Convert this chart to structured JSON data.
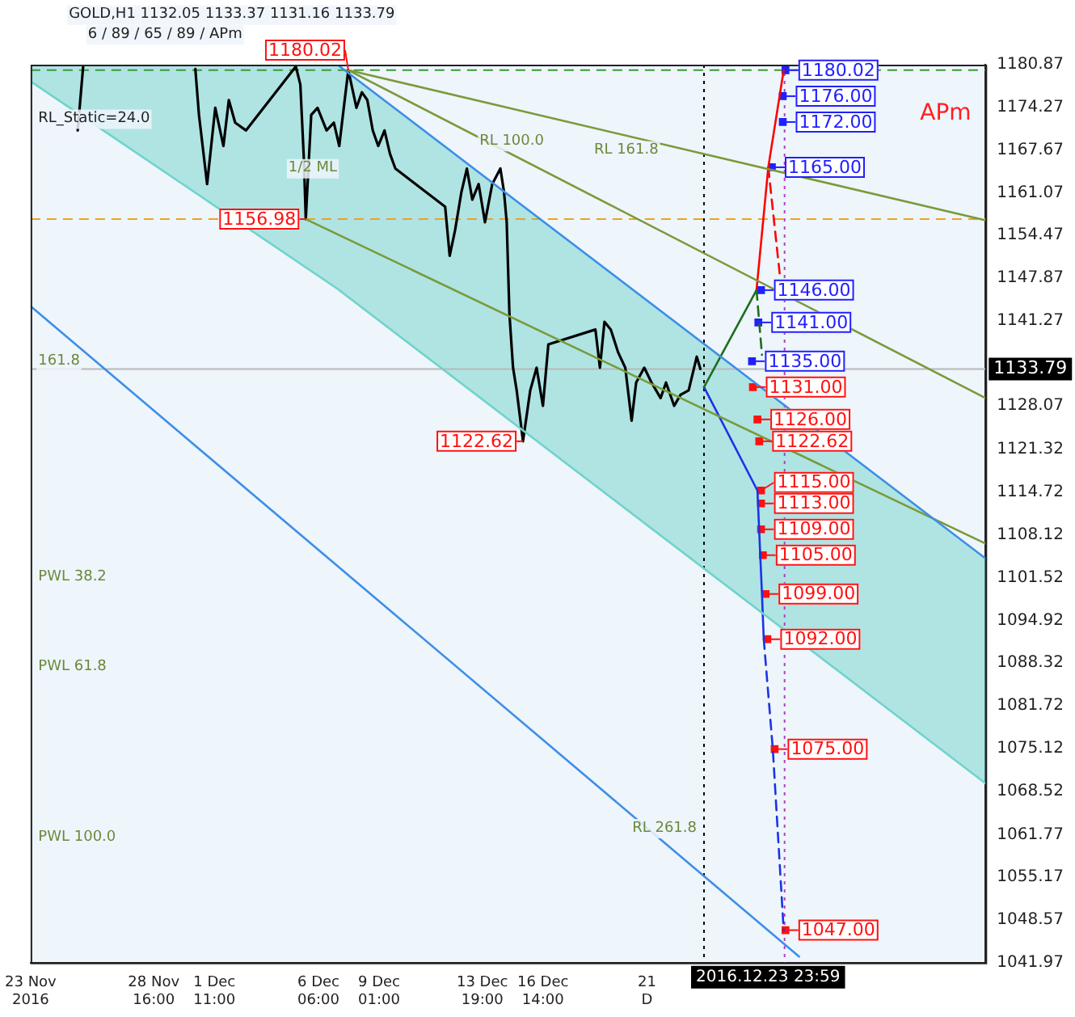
{
  "chart_data": {
    "type": "line",
    "xlim": [
      "2016-11-23T00:00",
      "2017-01-05T23:00"
    ],
    "ylim": [
      1041.97,
      1180.87
    ],
    "xticks": [
      {
        "value": "2016-11-23T00:00",
        "label": "23 Nov 2016"
      },
      {
        "value": "2016-11-28T16:00",
        "label": "28 Nov 16:00"
      },
      {
        "value": "2016-12-01T11:00",
        "label": "1 Dec 11:00"
      },
      {
        "value": "2016-12-06T06:00",
        "label": "6 Dec 06:00"
      },
      {
        "value": "2016-12-09T01:00",
        "label": "9 Dec 01:00"
      },
      {
        "value": "2016-12-13T19:00",
        "label": "13 Dec 19:00"
      },
      {
        "value": "2016-12-16T14:00",
        "label": "16 Dec 14:00"
      },
      {
        "value": "2016-12-21T09:00",
        "label": "21 D"
      }
    ],
    "yticks": [
      1180.87,
      1174.27,
      1167.67,
      1161.07,
      1154.47,
      1147.87,
      1141.27,
      1128.07,
      1121.32,
      1114.72,
      1108.12,
      1101.52,
      1094.92,
      1088.32,
      1081.72,
      1075.12,
      1068.52,
      1061.77,
      1055.17,
      1048.57,
      1041.97
    ],
    "grid": false,
    "legend": false,
    "marker": "none",
    "series": [
      {
        "color": "#6fd3cb",
        "x": [
          "2016-11-23T00:00",
          "2016-12-07T03:00",
          "2017-01-05T23:00"
        ],
        "values": [
          1178.3,
          1146.2,
          1069.7
        ],
        "lower": [
          1178.3,
          1146.2,
          1069.7
        ],
        "upper": [
          1180.87,
          1180.87,
          1104.5
        ]
      },
      {
        "color": "#3d8fe6",
        "x": [
          "2016-12-07T03:00",
          "2017-01-05T23:00"
        ],
        "values": [
          1180.87,
          1104.5
        ]
      },
      {
        "color": "#3d8fe6",
        "x": [
          "2016-11-23T00:00",
          "2016-12-28T09:00"
        ],
        "values": [
          1143.5,
          1042.9
        ]
      },
      {
        "color": "#7a9a3a",
        "x": [
          "2016-12-05T16:00",
          "2017-01-05T23:00"
        ],
        "values": [
          1156.98,
          1106.8
        ]
      },
      {
        "color": "#7a9a3a",
        "x": [
          "2016-12-07T15:00",
          "2017-01-05T23:00"
        ],
        "values": [
          1180.02,
          1129.3
        ]
      },
      {
        "color": "#7a9a3a",
        "x": [
          "2016-12-07T15:00",
          "2017-01-05T23:00"
        ],
        "values": [
          1180.02,
          1156.8
        ]
      },
      {
        "color": "#000000",
        "x": [
          "2016-11-25T04:00",
          "2016-11-25T10:00",
          "2016-11-25T12:00",
          "2016-11-30T14:00",
          "2016-11-30T18:00",
          "2016-12-01T03:00",
          "2016-12-01T12:00",
          "2016-12-01T21:00",
          "2016-12-02T03:00",
          "2016-12-02T10:00",
          "2016-12-02T22:00",
          "2016-12-05T05:00",
          "2016-12-05T10:00",
          "2016-12-05T14:00",
          "2016-12-05T16:00",
          "2016-12-05T22:00",
          "2016-12-06T05:00",
          "2016-12-06T15:00",
          "2016-12-06T23:00",
          "2016-12-07T05:00",
          "2016-12-07T11:00",
          "2016-12-07T15:00",
          "2016-12-08T00:00",
          "2016-12-08T06:00",
          "2016-12-08T12:00",
          "2016-12-08T18:00",
          "2016-12-09T00:00",
          "2016-12-09T07:00",
          "2016-12-09T13:00",
          "2016-12-09T19:00",
          "2016-12-12T02:00",
          "2016-12-12T07:00",
          "2016-12-12T13:00",
          "2016-12-12T20:00",
          "2016-12-13T02:00",
          "2016-12-13T08:00",
          "2016-12-13T15:00",
          "2016-12-13T22:00",
          "2016-12-14T06:00",
          "2016-12-14T15:00",
          "2016-12-14T19:00",
          "2016-12-14T22:00",
          "2016-12-15T01:00",
          "2016-12-15T05:00",
          "2016-12-15T09:00",
          "2016-12-15T16:00",
          "2016-12-16T00:00",
          "2016-12-16T07:00",
          "2016-12-16T14:00",
          "2016-12-16T20:00",
          "2016-12-19T00:00",
          "2016-12-19T05:00",
          "2016-12-19T10:00",
          "2016-12-19T17:00",
          "2016-12-20T01:00",
          "2016-12-20T09:00",
          "2016-12-20T16:00",
          "2016-12-20T21:00",
          "2016-12-21T06:00",
          "2016-12-21T14:00",
          "2016-12-22T00:00",
          "2016-12-22T06:00",
          "2016-12-22T15:00",
          "2016-12-22T22:00",
          "2016-12-23T07:00",
          "2016-12-23T16:00",
          "2016-12-23T20:00"
        ],
        "values": [
          1170.7,
          1180.5,
          null,
          1180.2,
          1173.1,
          1162.4,
          1174.2,
          1168.3,
          1175.4,
          1171.9,
          1170.7,
          1180.6,
          1177.8,
          1166,
          1156.98,
          1173.1,
          1174.2,
          1170.7,
          1171.9,
          1168.3,
          1175.4,
          1180.02,
          1174.2,
          1176.6,
          1175.4,
          1170.7,
          1168.3,
          1170.7,
          1167.1,
          1164.8,
          1158.9,
          1151.3,
          1155.3,
          1161.2,
          1164.8,
          1160,
          1162.4,
          1156.5,
          1162.4,
          1164.8,
          1161.2,
          1156.5,
          1142.3,
          1134,
          1130.5,
          1122.62,
          1130.5,
          1134,
          1128.1,
          1137.6,
          1139.9,
          1134,
          1141.1,
          1139.9,
          1136.4,
          1134,
          1125.8,
          1131.7,
          1134,
          1131.7,
          1129.3,
          1131.7,
          1128.1,
          1129.8,
          1130.5,
          1135.7,
          1133.8
        ]
      },
      {
        "color": "#1e6e1e",
        "x": [
          "2016-12-23T23:59",
          "2016-12-26T10:00"
        ],
        "values": [
          1131,
          1146
        ]
      },
      {
        "color": "#1e6e1e",
        "x": [
          "2016-12-26T10:00",
          "2016-12-26T16:00"
        ],
        "values": [
          1146,
          1136
        ],
        "line_style": "dashed"
      },
      {
        "color": "#ff0000",
        "x": [
          "2016-12-26T10:00",
          "2016-12-26T23:00",
          "2016-12-27T16:00"
        ],
        "values": [
          1146,
          1165,
          1180
        ]
      },
      {
        "color": "#ff0000",
        "x": [
          "2016-12-26T23:00",
          "2016-12-27T12:00"
        ],
        "values": [
          1165,
          1148
        ],
        "line_style": "dashed"
      },
      {
        "color": "#1a33e6",
        "x": [
          "2016-12-23T23:59",
          "2016-12-26T11:00",
          "2016-12-26T16:00",
          "2016-12-26T18:00"
        ],
        "values": [
          1131,
          1115,
          1099,
          1092
        ]
      },
      {
        "color": "#1a33e6",
        "x": [
          "2016-12-26T18:00",
          "2016-12-27T04:00",
          "2016-12-27T16:00"
        ],
        "values": [
          1092,
          1075,
          1047
        ],
        "line_style": "dashed"
      },
      {
        "type": "scatter",
        "marker": "square",
        "color": "#2020ff",
        "x": [
          "2016-12-27T18:00",
          "2016-12-27T15:00",
          "2016-12-27T15:00",
          "2016-12-27T03:00",
          "2016-12-26T15:00",
          "2016-12-26T12:00",
          "2016-12-26T05:00"
        ],
        "values": [
          1180.02,
          1176,
          1172,
          1165,
          1146,
          1141,
          1135
        ]
      },
      {
        "type": "scatter",
        "marker": "square",
        "color": "#ff1010",
        "x": [
          "2016-12-26T06:00",
          "2016-12-26T11:00",
          "2016-12-26T13:00",
          "2016-12-26T15:00",
          "2016-12-26T15:00",
          "2016-12-26T15:00",
          "2016-12-26T17:00",
          "2016-12-26T20:00",
          "2016-12-26T22:00",
          "2016-12-27T06:00",
          "2016-12-27T18:00"
        ],
        "values": [
          1131,
          1126,
          1122.62,
          1115,
          1113,
          1109,
          1105,
          1099,
          1092,
          1075,
          1047
        ]
      }
    ],
    "ref_lines": [
      {
        "axis": "x",
        "value": "2016-12-23T23:59",
        "color": "#000000",
        "line_style": "dotted"
      },
      {
        "axis": "x",
        "value": "2016-12-27T17:00",
        "color": "#b040c0",
        "line_style": "dotted"
      },
      {
        "axis": "y",
        "value": 1133.79,
        "label": "1133.79",
        "color": "#b8b8b8",
        "line_style": "solid"
      },
      {
        "axis": "y",
        "value": 1180.02,
        "color": "#3a9a3a",
        "line_style": "dashed"
      },
      {
        "axis": "y",
        "value": 1156.98,
        "color": "#f0a020",
        "line_style": "dashed"
      }
    ],
    "annotations": [
      "GOLD,H1 1132.05 1133.37 1131.16 1133.79",
      "6 / 89 / 65 / 89 / APm",
      "RL_Static=24.0",
      "APm",
      "2016.12.23 23:59",
      "1/2 ML",
      "RL 100.0",
      "RL 161.8",
      "RL 261.8",
      "161.8",
      "PWL 38.2",
      "PWL 61.8",
      "PWL 100.0",
      {
        "text": "1180.02",
        "x": "2016-12-07T15:00",
        "y": 1180.02
      },
      {
        "text": "1156.98",
        "x": "2016-12-05T16:00",
        "y": 1156.98
      },
      {
        "text": "1122.62",
        "x": "2016-12-15T16:00",
        "y": 1122.62
      },
      {
        "text": "1180.02",
        "x": "2016-12-27T18:00",
        "y": 1180.02
      },
      {
        "text": "1176.00",
        "x": "2016-12-27T15:00",
        "y": 1176
      },
      {
        "text": "1172.00",
        "x": "2016-12-27T15:00",
        "y": 1172
      },
      {
        "text": "1165.00",
        "x": "2016-12-27T03:00",
        "y": 1165
      },
      {
        "text": "1146.00",
        "x": "2016-12-26T15:00",
        "y": 1146
      },
      {
        "text": "1141.00",
        "x": "2016-12-26T12:00",
        "y": 1141
      },
      {
        "text": "1135.00",
        "x": "2016-12-26T05:00",
        "y": 1135
      },
      {
        "text": "1131.00",
        "x": "2016-12-26T06:00",
        "y": 1131
      },
      {
        "text": "1126.00",
        "x": "2016-12-26T11:00",
        "y": 1126
      },
      {
        "text": "1122.62",
        "x": "2016-12-26T13:00",
        "y": 1122.62
      },
      {
        "text": "1115.00",
        "x": "2016-12-26T15:00",
        "y": 1115
      },
      {
        "text": "1113.00",
        "x": "2016-12-26T15:00",
        "y": 1113
      },
      {
        "text": "1109.00",
        "x": "2016-12-26T15:00",
        "y": 1109
      },
      {
        "text": "1105.00",
        "x": "2016-12-26T17:00",
        "y": 1105
      },
      {
        "text": "1099.00",
        "x": "2016-12-26T20:00",
        "y": 1099
      },
      {
        "text": "1092.00",
        "x": "2016-12-26T22:00",
        "y": 1092
      },
      {
        "text": "1075.00",
        "x": "2016-12-27T06:00",
        "y": 1075
      },
      {
        "text": "1047.00",
        "x": "2016-12-27T18:00",
        "y": 1047
      }
    ]
  }
}
